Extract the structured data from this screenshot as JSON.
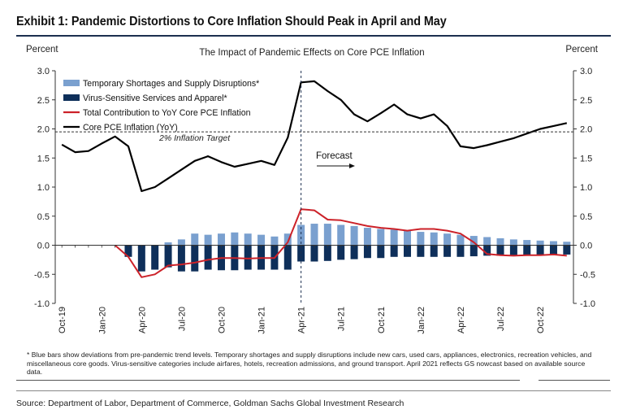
{
  "exhibit_title": "Exhibit 1: Pandemic Distortions to Core Inflation Should Peak in April and May",
  "footnote": "* Blue bars show deviations from pre-pandemic trend levels. Temporary shortages and supply disruptions include new cars, used cars, appliances, electronics, recreation vehicles, and miscellaneous core goods. Virus-sensitive categories include airfares, hotels, recreation admissions, and ground transport. April 2021 reflects GS nowcast based on available source data.",
  "source": "Source: Department of Labor, Department of Commerce, Goldman Sachs Global Investment Research",
  "colors": {
    "temporary": "#7aa0cf",
    "virus": "#0e2f5a",
    "total": "#cc2229",
    "core": "#000000",
    "rule": "#1c2f4f"
  },
  "chart_data": {
    "type": "bar",
    "title": "The Impact of Pandemic Effects on Core PCE Inflation",
    "ylabel_left": "Percent",
    "ylabel_right": "Percent",
    "ylim": [
      -1.0,
      3.0
    ],
    "yticks": [
      "3.0",
      "2.5",
      "2.0",
      "1.5",
      "1.0",
      "0.5",
      "0.0",
      "-0.5",
      "-1.0"
    ],
    "ytick_values": [
      3.0,
      2.5,
      2.0,
      1.5,
      1.0,
      0.5,
      0.0,
      -0.5,
      -1.0
    ],
    "x": [
      "Oct-19",
      "Nov-19",
      "Dec-19",
      "Jan-20",
      "Feb-20",
      "Mar-20",
      "Apr-20",
      "May-20",
      "Jun-20",
      "Jul-20",
      "Aug-20",
      "Sep-20",
      "Oct-20",
      "Nov-20",
      "Dec-20",
      "Jan-21",
      "Feb-21",
      "Mar-21",
      "Apr-21",
      "May-21",
      "Jun-21",
      "Jul-21",
      "Aug-21",
      "Sep-21",
      "Oct-21",
      "Nov-21",
      "Dec-21",
      "Jan-22",
      "Feb-22",
      "Mar-22",
      "Apr-22",
      "May-22",
      "Jun-22",
      "Jul-22",
      "Aug-22",
      "Sep-22",
      "Oct-22",
      "Nov-22",
      "Dec-22"
    ],
    "xtick_labels": [
      "Oct-19",
      "Jan-20",
      "Apr-20",
      "Jul-20",
      "Oct-20",
      "Jan-21",
      "Apr-21",
      "Jul-21",
      "Oct-21",
      "Jan-22",
      "Apr-22",
      "Jul-22",
      "Oct-22"
    ],
    "legend_position": "top-left",
    "series": [
      {
        "name": "Temporary Shortages and Supply Disruptions*",
        "kind": "bar",
        "color": "#7aa0cf",
        "values": [
          null,
          null,
          null,
          null,
          null,
          -0.03,
          -0.05,
          -0.02,
          0.05,
          0.1,
          0.2,
          0.18,
          0.2,
          0.22,
          0.2,
          0.18,
          0.15,
          0.2,
          0.35,
          0.37,
          0.37,
          0.35,
          0.33,
          0.3,
          0.28,
          0.27,
          0.25,
          0.23,
          0.22,
          0.2,
          0.18,
          0.16,
          0.14,
          0.12,
          0.1,
          0.09,
          0.08,
          0.07,
          0.06
        ]
      },
      {
        "name": "Virus-Sensitive Services and Apparel*",
        "kind": "bar",
        "color": "#0e2f5a",
        "values": [
          null,
          null,
          null,
          null,
          null,
          -0.2,
          -0.45,
          -0.42,
          -0.38,
          -0.45,
          -0.45,
          -0.42,
          -0.43,
          -0.43,
          -0.42,
          -0.42,
          -0.42,
          -0.42,
          -0.28,
          -0.28,
          -0.27,
          -0.25,
          -0.24,
          -0.22,
          -0.22,
          -0.2,
          -0.2,
          -0.2,
          -0.2,
          -0.2,
          -0.2,
          -0.19,
          -0.18,
          -0.18,
          -0.17,
          -0.17,
          -0.17,
          -0.16,
          -0.16
        ]
      },
      {
        "name": "Total Contribution to YoY Core PCE Inflation",
        "kind": "line",
        "color": "#cc2229",
        "values": [
          null,
          null,
          null,
          null,
          0.0,
          -0.2,
          -0.55,
          -0.5,
          -0.35,
          -0.33,
          -0.3,
          -0.25,
          -0.22,
          -0.22,
          -0.23,
          -0.22,
          -0.22,
          0.05,
          0.62,
          0.6,
          0.44,
          0.43,
          0.38,
          0.33,
          0.3,
          0.28,
          0.25,
          0.28,
          0.28,
          0.25,
          0.2,
          0.05,
          -0.15,
          -0.17,
          -0.18,
          -0.17,
          -0.17,
          -0.16,
          -0.18
        ]
      },
      {
        "name": "Core PCE Inflation (YoY)",
        "kind": "line",
        "color": "#000000",
        "values": [
          1.73,
          1.6,
          1.62,
          1.75,
          1.87,
          1.7,
          0.93,
          1.0,
          1.15,
          1.3,
          1.45,
          1.53,
          1.43,
          1.35,
          1.4,
          1.45,
          1.38,
          1.85,
          2.8,
          2.82,
          2.65,
          2.5,
          2.25,
          2.13,
          2.27,
          2.42,
          2.25,
          2.18,
          2.25,
          2.05,
          1.7,
          1.67,
          1.72,
          1.78,
          1.84,
          1.92,
          2.0,
          2.05,
          2.1
        ]
      }
    ],
    "annotations": {
      "target_line_value": 1.95,
      "target_label": "2% Inflation Target",
      "forecast_label": "Forecast",
      "forecast_start": "Apr-21"
    }
  }
}
